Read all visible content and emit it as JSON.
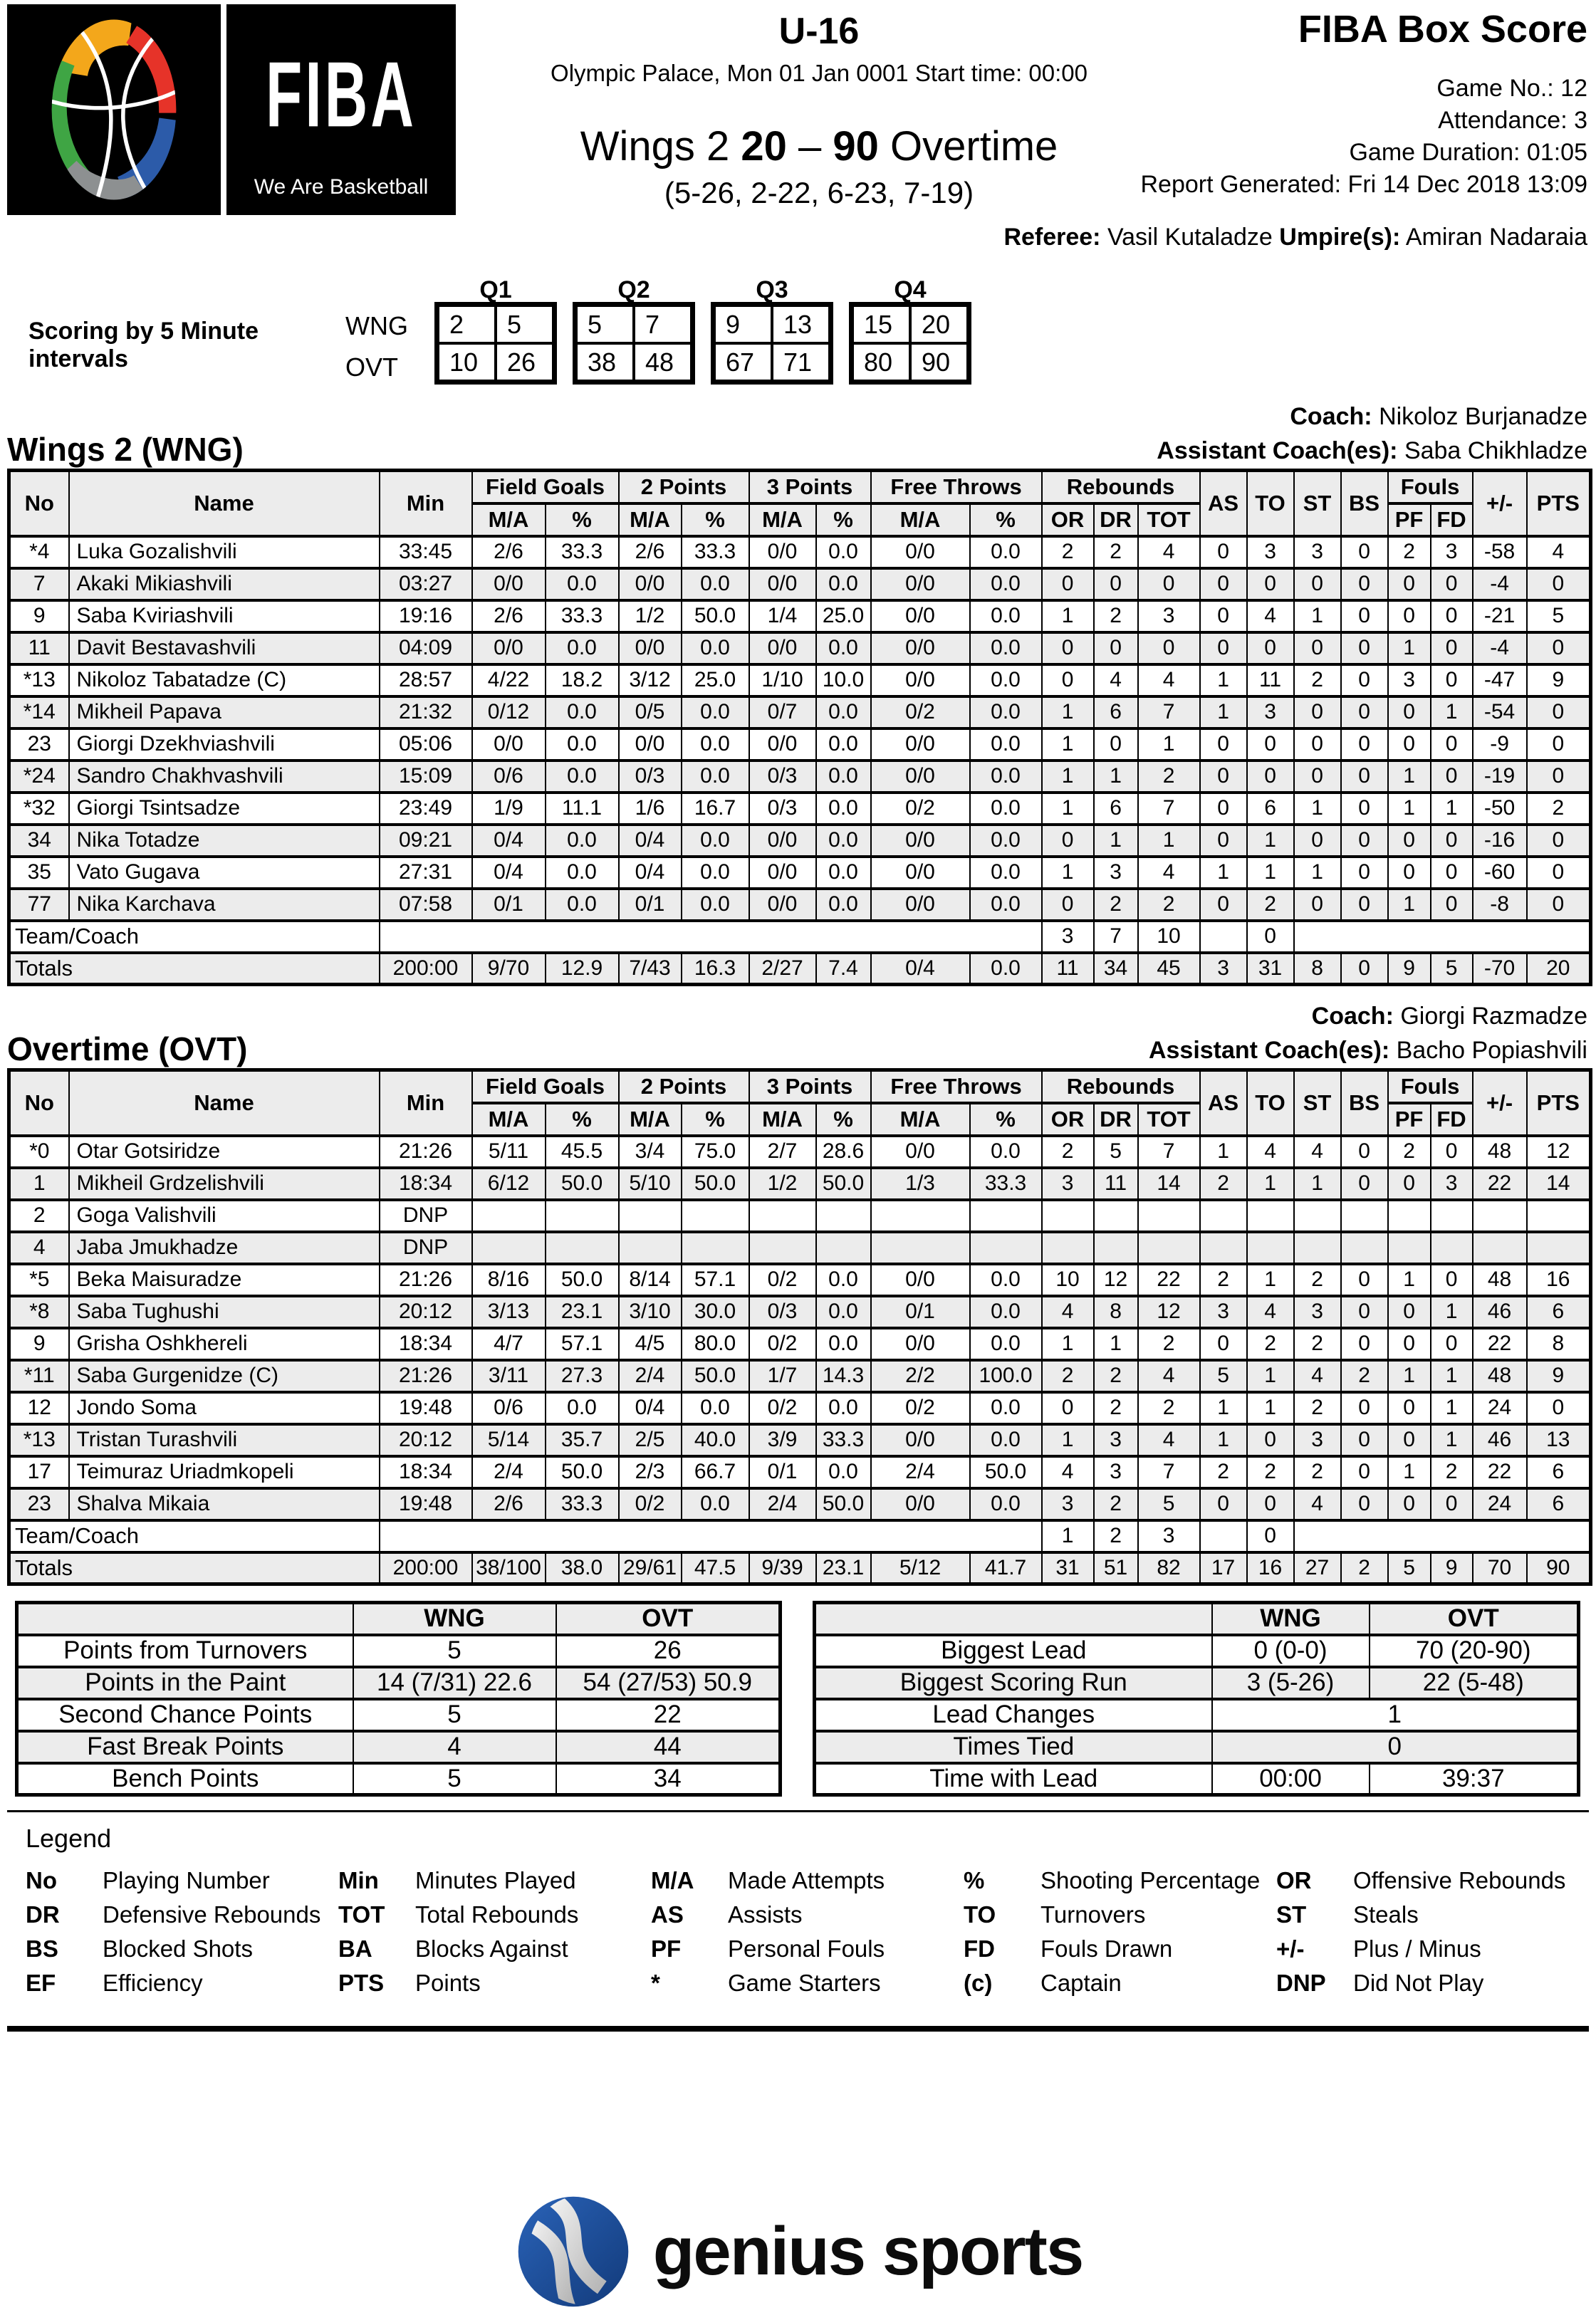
{
  "header": {
    "competition": "U-16",
    "venue_line": "Olympic Palace, Mon 01 Jan 0001 Start time: 00:00",
    "score": {
      "team_a": "Wings 2",
      "score_a": "20",
      "separator": "–",
      "score_b": "90",
      "team_b": "Overtime",
      "quarters": "(5-26, 2-22, 6-23, 7-19)"
    },
    "report_title": "FIBA Box Score",
    "info_lines": [
      "Game No.: 12",
      "Attendance: 3",
      "Game Duration: 01:05",
      "Report Generated: Fri 14 Dec 2018 13:09"
    ],
    "referee_label": "Referee:",
    "referee_name": "Vasil Kutaladze",
    "umpire_label": "Umpire(s):",
    "umpire_name": "Amiran Nadaraia",
    "fiba_brand": "FIBA",
    "fiba_tagline": "We Are Basketball"
  },
  "intervals": {
    "title": "Scoring by 5 Minute intervals",
    "quarters": [
      "Q1",
      "Q2",
      "Q3",
      "Q4"
    ],
    "rows": [
      {
        "team": "WNG",
        "cells": [
          "2",
          "5",
          "5",
          "7",
          "9",
          "13",
          "15",
          "20"
        ]
      },
      {
        "team": "OVT",
        "cells": [
          "10",
          "26",
          "38",
          "48",
          "67",
          "71",
          "80",
          "90"
        ]
      }
    ]
  },
  "box_table_headers": {
    "no": "No",
    "name": "Name",
    "min": "Min",
    "groups": [
      {
        "label": "Field Goals",
        "subs": [
          "M/A",
          "%"
        ]
      },
      {
        "label": "2 Points",
        "subs": [
          "M/A",
          "%"
        ]
      },
      {
        "label": "3 Points",
        "subs": [
          "M/A",
          "%"
        ]
      },
      {
        "label": "Free Throws",
        "subs": [
          "M/A",
          "%"
        ]
      },
      {
        "label": "Rebounds",
        "subs": [
          "OR",
          "DR",
          "TOT"
        ]
      }
    ],
    "singles": [
      "AS",
      "TO",
      "ST",
      "BS"
    ],
    "fouls": {
      "label": "Fouls",
      "subs": [
        "PF",
        "FD"
      ]
    },
    "pm": "+/-",
    "pts": "PTS"
  },
  "teams": [
    {
      "title": "Wings 2 (WNG)",
      "coach_label": "Coach:",
      "coach": "Nikoloz Burjanadze",
      "assistant_label": "Assistant Coach(es):",
      "assistant": "Saba Chikhladze",
      "players": [
        [
          "*4",
          "Luka Gozalishvili",
          "33:45",
          "2/6",
          "33.3",
          "2/6",
          "33.3",
          "0/0",
          "0.0",
          "0/0",
          "0.0",
          "2",
          "2",
          "4",
          "0",
          "3",
          "3",
          "0",
          "2",
          "3",
          "-58",
          "4"
        ],
        [
          "7",
          "Akaki Mikiashvili",
          "03:27",
          "0/0",
          "0.0",
          "0/0",
          "0.0",
          "0/0",
          "0.0",
          "0/0",
          "0.0",
          "0",
          "0",
          "0",
          "0",
          "0",
          "0",
          "0",
          "0",
          "0",
          "-4",
          "0"
        ],
        [
          "9",
          "Saba Kviriashvili",
          "19:16",
          "2/6",
          "33.3",
          "1/2",
          "50.0",
          "1/4",
          "25.0",
          "0/0",
          "0.0",
          "1",
          "2",
          "3",
          "0",
          "4",
          "1",
          "0",
          "0",
          "0",
          "-21",
          "5"
        ],
        [
          "11",
          "Davit Bestavashvili",
          "04:09",
          "0/0",
          "0.0",
          "0/0",
          "0.0",
          "0/0",
          "0.0",
          "0/0",
          "0.0",
          "0",
          "0",
          "0",
          "0",
          "0",
          "0",
          "0",
          "1",
          "0",
          "-4",
          "0"
        ],
        [
          "*13",
          "Nikoloz Tabatadze (C)",
          "28:57",
          "4/22",
          "18.2",
          "3/12",
          "25.0",
          "1/10",
          "10.0",
          "0/0",
          "0.0",
          "0",
          "4",
          "4",
          "1",
          "11",
          "2",
          "0",
          "3",
          "0",
          "-47",
          "9"
        ],
        [
          "*14",
          "Mikheil Papava",
          "21:32",
          "0/12",
          "0.0",
          "0/5",
          "0.0",
          "0/7",
          "0.0",
          "0/2",
          "0.0",
          "1",
          "6",
          "7",
          "1",
          "3",
          "0",
          "0",
          "0",
          "1",
          "-54",
          "0"
        ],
        [
          "23",
          "Giorgi Dzekhviashvili",
          "05:06",
          "0/0",
          "0.0",
          "0/0",
          "0.0",
          "0/0",
          "0.0",
          "0/0",
          "0.0",
          "1",
          "0",
          "1",
          "0",
          "0",
          "0",
          "0",
          "0",
          "0",
          "-9",
          "0"
        ],
        [
          "*24",
          "Sandro Chakhvashvili",
          "15:09",
          "0/6",
          "0.0",
          "0/3",
          "0.0",
          "0/3",
          "0.0",
          "0/0",
          "0.0",
          "1",
          "1",
          "2",
          "0",
          "0",
          "0",
          "0",
          "1",
          "0",
          "-19",
          "0"
        ],
        [
          "*32",
          "Giorgi Tsintsadze",
          "23:49",
          "1/9",
          "11.1",
          "1/6",
          "16.7",
          "0/3",
          "0.0",
          "0/2",
          "0.0",
          "1",
          "6",
          "7",
          "0",
          "6",
          "1",
          "0",
          "1",
          "1",
          "-50",
          "2"
        ],
        [
          "34",
          "Nika Totadze",
          "09:21",
          "0/4",
          "0.0",
          "0/4",
          "0.0",
          "0/0",
          "0.0",
          "0/0",
          "0.0",
          "0",
          "1",
          "1",
          "0",
          "1",
          "0",
          "0",
          "0",
          "0",
          "-16",
          "0"
        ],
        [
          "35",
          "Vato Gugava",
          "27:31",
          "0/4",
          "0.0",
          "0/4",
          "0.0",
          "0/0",
          "0.0",
          "0/0",
          "0.0",
          "1",
          "3",
          "4",
          "1",
          "1",
          "1",
          "0",
          "0",
          "0",
          "-60",
          "0"
        ],
        [
          "77",
          "Nika Karchava",
          "07:58",
          "0/1",
          "0.0",
          "0/1",
          "0.0",
          "0/0",
          "0.0",
          "0/0",
          "0.0",
          "0",
          "2",
          "2",
          "0",
          "2",
          "0",
          "0",
          "1",
          "0",
          "-8",
          "0"
        ]
      ],
      "team_row": {
        "label": "Team/Coach",
        "or": "3",
        "dr": "7",
        "tot": "10",
        "to": "0"
      },
      "totals": [
        "Totals",
        "200:00",
        "9/70",
        "12.9",
        "7/43",
        "16.3",
        "2/27",
        "7.4",
        "0/4",
        "0.0",
        "11",
        "34",
        "45",
        "3",
        "31",
        "8",
        "0",
        "9",
        "5",
        "-70",
        "20"
      ]
    },
    {
      "title": "Overtime (OVT)",
      "coach_label": "Coach:",
      "coach": "Giorgi Razmadze",
      "assistant_label": "Assistant Coach(es):",
      "assistant": "Bacho Popiashvili",
      "players": [
        [
          "*0",
          "Otar Gotsiridze",
          "21:26",
          "5/11",
          "45.5",
          "3/4",
          "75.0",
          "2/7",
          "28.6",
          "0/0",
          "0.0",
          "2",
          "5",
          "7",
          "1",
          "4",
          "4",
          "0",
          "2",
          "0",
          "48",
          "12"
        ],
        [
          "1",
          "Mikheil Grdzelishvili",
          "18:34",
          "6/12",
          "50.0",
          "5/10",
          "50.0",
          "1/2",
          "50.0",
          "1/3",
          "33.3",
          "3",
          "11",
          "14",
          "2",
          "1",
          "1",
          "0",
          "0",
          "3",
          "22",
          "14"
        ],
        [
          "2",
          "Goga Valishvili",
          "DNP",
          "",
          "",
          "",
          "",
          "",
          "",
          "",
          "",
          "",
          "",
          "",
          "",
          "",
          "",
          "",
          "",
          "",
          "",
          ""
        ],
        [
          "4",
          "Jaba Jmukhadze",
          "DNP",
          "",
          "",
          "",
          "",
          "",
          "",
          "",
          "",
          "",
          "",
          "",
          "",
          "",
          "",
          "",
          "",
          "",
          "",
          ""
        ],
        [
          "*5",
          "Beka Maisuradze",
          "21:26",
          "8/16",
          "50.0",
          "8/14",
          "57.1",
          "0/2",
          "0.0",
          "0/0",
          "0.0",
          "10",
          "12",
          "22",
          "2",
          "1",
          "2",
          "0",
          "1",
          "0",
          "48",
          "16"
        ],
        [
          "*8",
          "Saba Tughushi",
          "20:12",
          "3/13",
          "23.1",
          "3/10",
          "30.0",
          "0/3",
          "0.0",
          "0/1",
          "0.0",
          "4",
          "8",
          "12",
          "3",
          "4",
          "3",
          "0",
          "0",
          "1",
          "46",
          "6"
        ],
        [
          "9",
          "Grisha Oshkhereli",
          "18:34",
          "4/7",
          "57.1",
          "4/5",
          "80.0",
          "0/2",
          "0.0",
          "0/0",
          "0.0",
          "1",
          "1",
          "2",
          "0",
          "2",
          "2",
          "0",
          "0",
          "0",
          "22",
          "8"
        ],
        [
          "*11",
          "Saba Gurgenidze (C)",
          "21:26",
          "3/11",
          "27.3",
          "2/4",
          "50.0",
          "1/7",
          "14.3",
          "2/2",
          "100.0",
          "2",
          "2",
          "4",
          "5",
          "1",
          "4",
          "2",
          "1",
          "1",
          "48",
          "9"
        ],
        [
          "12",
          "Jondo Soma",
          "19:48",
          "0/6",
          "0.0",
          "0/4",
          "0.0",
          "0/2",
          "0.0",
          "0/2",
          "0.0",
          "0",
          "2",
          "2",
          "1",
          "1",
          "2",
          "0",
          "0",
          "1",
          "24",
          "0"
        ],
        [
          "*13",
          "Tristan Turashvili",
          "20:12",
          "5/14",
          "35.7",
          "2/5",
          "40.0",
          "3/9",
          "33.3",
          "0/0",
          "0.0",
          "1",
          "3",
          "4",
          "1",
          "0",
          "3",
          "0",
          "0",
          "1",
          "46",
          "13"
        ],
        [
          "17",
          "Teimuraz Uriadmkopeli",
          "18:34",
          "2/4",
          "50.0",
          "2/3",
          "66.7",
          "0/1",
          "0.0",
          "2/4",
          "50.0",
          "4",
          "3",
          "7",
          "2",
          "2",
          "2",
          "0",
          "1",
          "2",
          "22",
          "6"
        ],
        [
          "23",
          "Shalva Mikaia",
          "19:48",
          "2/6",
          "33.3",
          "0/2",
          "0.0",
          "2/4",
          "50.0",
          "0/0",
          "0.0",
          "3",
          "2",
          "5",
          "0",
          "0",
          "4",
          "0",
          "0",
          "0",
          "24",
          "6"
        ]
      ],
      "team_row": {
        "label": "Team/Coach",
        "or": "1",
        "dr": "2",
        "tot": "3",
        "to": "0"
      },
      "totals": [
        "Totals",
        "200:00",
        "38/100",
        "38.0",
        "29/61",
        "47.5",
        "9/39",
        "23.1",
        "5/12",
        "41.7",
        "31",
        "51",
        "82",
        "17",
        "16",
        "27",
        "2",
        "5",
        "9",
        "70",
        "90"
      ]
    }
  ],
  "summary_left": {
    "headers": [
      "WNG",
      "OVT"
    ],
    "rows": [
      {
        "label": "Points from Turnovers",
        "wng": "5",
        "ovt": "26"
      },
      {
        "label": "Points in the Paint",
        "wng": "14 (7/31) 22.6",
        "ovt": "54 (27/53) 50.9"
      },
      {
        "label": "Second Chance Points",
        "wng": "5",
        "ovt": "22"
      },
      {
        "label": "Fast Break Points",
        "wng": "4",
        "ovt": "44"
      },
      {
        "label": "Bench Points",
        "wng": "5",
        "ovt": "34"
      }
    ]
  },
  "summary_right": {
    "headers": [
      "WNG",
      "OVT"
    ],
    "rows": [
      {
        "label": "Biggest Lead",
        "wng": "0 (0-0)",
        "ovt": "70 (20-90)"
      },
      {
        "label": "Biggest Scoring Run",
        "wng": "3 (5-26)",
        "ovt": "22 (5-48)"
      },
      {
        "label": "Lead Changes",
        "span": "1"
      },
      {
        "label": "Times Tied",
        "span": "0"
      },
      {
        "label": "Time with Lead",
        "wng": "00:00",
        "ovt": "39:37"
      }
    ]
  },
  "legend": {
    "title": "Legend",
    "rows": [
      [
        [
          "No",
          "Playing Number"
        ],
        [
          "Min",
          "Minutes Played"
        ],
        [
          "M/A",
          "Made Attempts"
        ],
        [
          "%",
          "Shooting Percentage"
        ],
        [
          "OR",
          "Offensive Rebounds"
        ]
      ],
      [
        [
          "DR",
          "Defensive Rebounds"
        ],
        [
          "TOT",
          "Total Rebounds"
        ],
        [
          "AS",
          "Assists"
        ],
        [
          "TO",
          "Turnovers"
        ],
        [
          "ST",
          "Steals"
        ]
      ],
      [
        [
          "BS",
          "Blocked Shots"
        ],
        [
          "BA",
          "Blocks Against"
        ],
        [
          "PF",
          "Personal Fouls"
        ],
        [
          "FD",
          "Fouls Drawn"
        ],
        [
          "+/-",
          "Plus / Minus"
        ]
      ],
      [
        [
          "EF",
          "Efficiency"
        ],
        [
          "PTS",
          "Points"
        ],
        [
          "*",
          "Game Starters"
        ],
        [
          "(c)",
          "Captain"
        ],
        [
          "DNP",
          "Did Not Play"
        ]
      ]
    ]
  },
  "footer": {
    "brand": "genius sports"
  },
  "colors": {
    "accent_blue": "#2c5ba9",
    "fiba_green": "#3fa544",
    "fiba_yellow": "#f3a71b",
    "fiba_red": "#e63329",
    "row_alt": "#ececec"
  }
}
